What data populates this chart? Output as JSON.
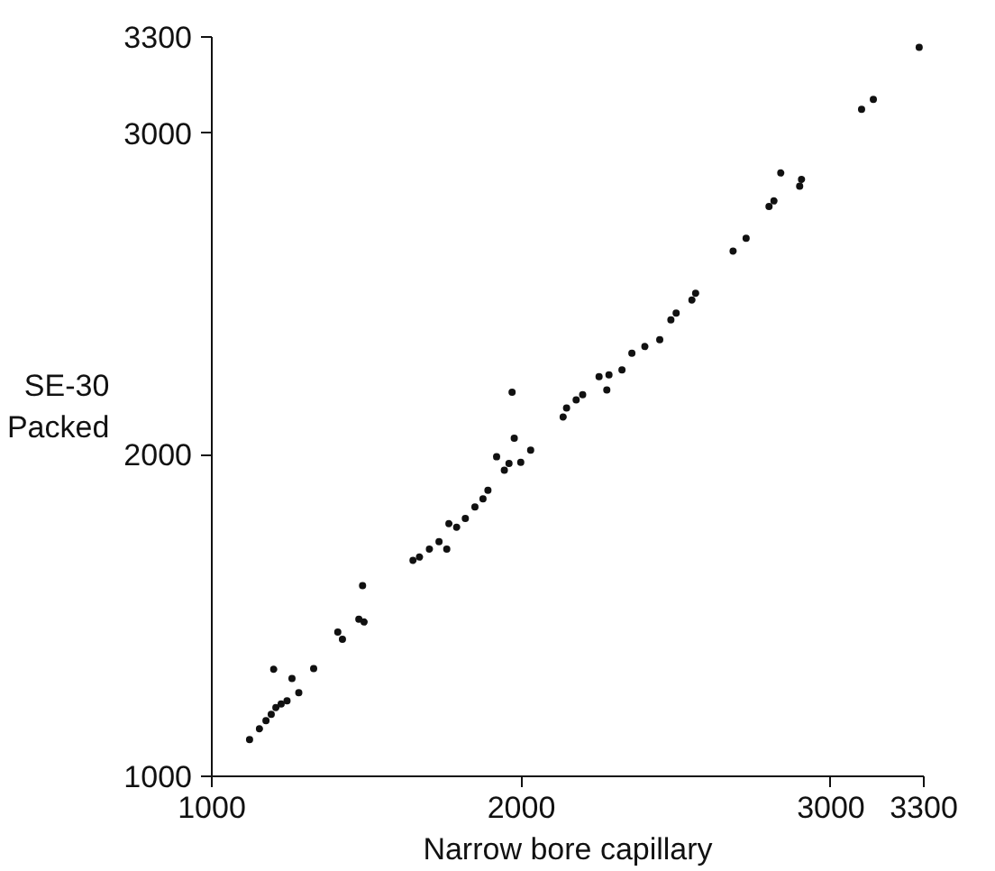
{
  "chart_data": {
    "type": "scatter",
    "xlabel": "Narrow bore capillary",
    "ylabel": "SE-30 Packed",
    "xlim": [
      1000,
      3300
    ],
    "ylim": [
      1000,
      3300
    ],
    "xticks": [
      1000,
      2000,
      3000,
      3300
    ],
    "yticks": [
      1000,
      2000,
      3000,
      3300
    ],
    "grid": false,
    "series": [
      {
        "color": "#111111",
        "x": [
          1122,
          1154,
          1175,
          1192,
          1207,
          1224,
          1243,
          1200,
          1259,
          1281,
          1329,
          1407,
          1422,
          1475,
          1492,
          1487,
          1650,
          1671,
          1703,
          1734,
          1759,
          1766,
          1791,
          1819,
          1850,
          1876,
          1892,
          1920,
          1945,
          1960,
          1970,
          1977,
          1998,
          2030,
          2135,
          2146,
          2177,
          2198,
          2251,
          2276,
          2283,
          2325,
          2357,
          2399,
          2441,
          2447,
          2483,
          2500,
          2551,
          2563,
          2684,
          2726,
          2800,
          2816,
          2838,
          2899,
          2905,
          3099,
          3137,
          3285
        ],
        "values": [
          1114,
          1148,
          1173,
          1193,
          1214,
          1225,
          1235,
          1333,
          1304,
          1260,
          1335,
          1449,
          1426,
          1489,
          1480,
          1593,
          1672,
          1682,
          1707,
          1730,
          1707,
          1786,
          1775,
          1802,
          1838,
          1863,
          1890,
          1994,
          1952,
          1973,
          2195,
          2052,
          1977,
          2015,
          2118,
          2146,
          2171,
          2187,
          2243,
          2202,
          2249,
          2264,
          2316,
          2337,
          null,
          2358,
          2420,
          2441,
          2482,
          2503,
          2634,
          2674,
          2773,
          2790,
          2877,
          2836,
          2857,
          3075,
          3106,
          3268
        ]
      }
    ]
  }
}
